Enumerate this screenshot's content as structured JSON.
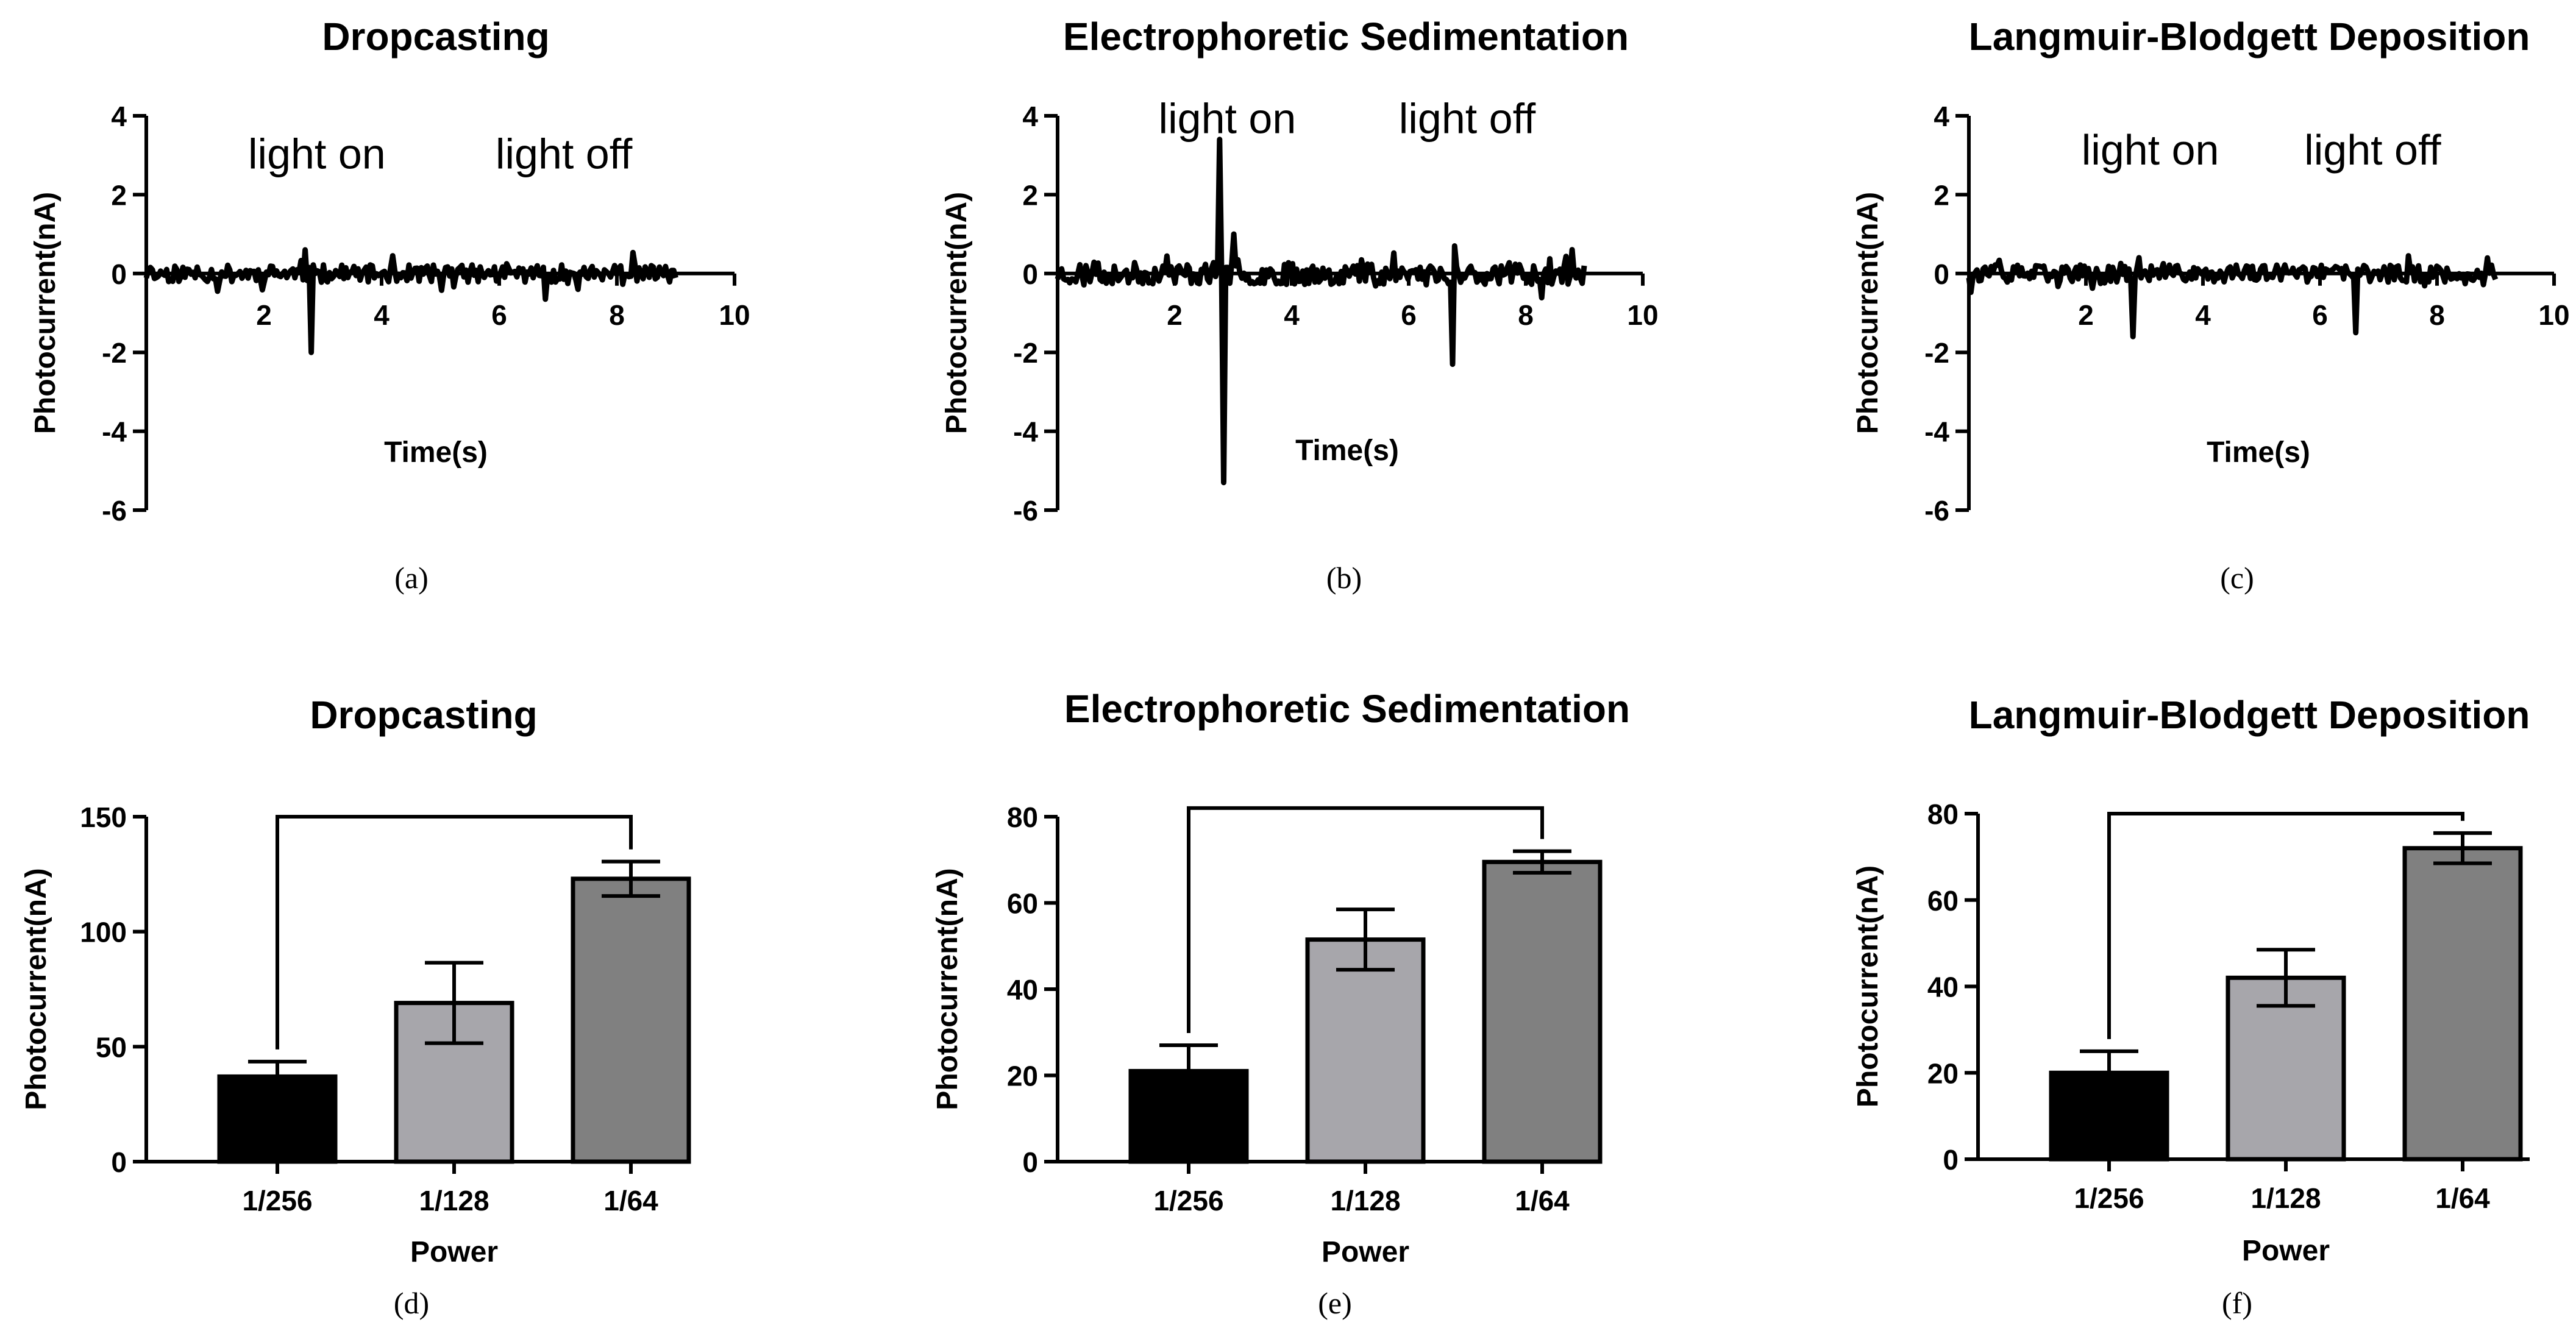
{
  "chart_data": [
    {
      "id": "a",
      "type": "line",
      "caption": "(a)",
      "title": "Dropcasting",
      "xlabel": "Time(s)",
      "ylabel": "Photocurrent(nA)",
      "xlim": [
        0,
        10
      ],
      "ylim": [
        -6,
        4
      ],
      "xticks": [
        2,
        4,
        6,
        8,
        10
      ],
      "yticks": [
        4,
        2,
        0,
        -2,
        -4,
        -6
      ],
      "annotations": [
        {
          "text": "light on",
          "x": 2.9,
          "y": 3.0
        },
        {
          "text": "light off",
          "x": 7.1,
          "y": 3.0
        }
      ],
      "series": [
        {
          "name": "photocurrent",
          "x_end": 9.0,
          "noise": 0.22,
          "seed": 11,
          "spikes": [
            {
              "x": 2.82,
              "y": -2.0
            },
            {
              "x": 2.7,
              "y": 0.6
            },
            {
              "x": 6.8,
              "y": -0.65
            },
            {
              "x": 1.2,
              "y": -0.45
            }
          ]
        }
      ]
    },
    {
      "id": "b",
      "type": "line",
      "caption": "(b)",
      "title": "Electrophoretic Sedimentation",
      "xlabel": "Time(s)",
      "ylabel": "Photocurrent(nA)",
      "xlim": [
        0,
        10
      ],
      "ylim": [
        -6,
        4
      ],
      "xticks": [
        2,
        4,
        6,
        8,
        10
      ],
      "yticks": [
        4,
        2,
        0,
        -2,
        -4,
        -6
      ],
      "annotations": [
        {
          "text": "light on",
          "x": 2.9,
          "y": 3.9
        },
        {
          "text": "light off",
          "x": 7.0,
          "y": 3.9
        }
      ],
      "series": [
        {
          "name": "photocurrent",
          "x_end": 9.0,
          "noise": 0.28,
          "seed": 23,
          "spikes": [
            {
              "x": 2.78,
              "y": 3.4
            },
            {
              "x": 2.85,
              "y": -5.3
            },
            {
              "x": 3.0,
              "y": 1.0
            },
            {
              "x": 6.75,
              "y": -2.3
            },
            {
              "x": 6.8,
              "y": 0.7
            }
          ]
        }
      ]
    },
    {
      "id": "c",
      "type": "line",
      "caption": "(c)",
      "title": "Langmuir-Blodgett Deposition",
      "xlabel": "Time(s)",
      "ylabel": "Photocurrent(nA)",
      "xlim": [
        0,
        10
      ],
      "ylim": [
        -6,
        4
      ],
      "xticks": [
        2,
        4,
        6,
        8,
        10
      ],
      "yticks": [
        4,
        2,
        0,
        -2,
        -4,
        -6
      ],
      "annotations": [
        {
          "text": "light on",
          "x": 3.1,
          "y": 3.1
        },
        {
          "text": "light off",
          "x": 6.9,
          "y": 3.1
        }
      ],
      "series": [
        {
          "name": "photocurrent",
          "x_end": 9.0,
          "noise": 0.22,
          "seed": 37,
          "spikes": [
            {
              "x": 2.8,
              "y": -1.6
            },
            {
              "x": 2.9,
              "y": 0.4
            },
            {
              "x": 6.62,
              "y": -1.5
            },
            {
              "x": 7.5,
              "y": 0.45
            }
          ]
        }
      ]
    },
    {
      "id": "d",
      "type": "bar",
      "caption": "(d)",
      "title": "Dropcasting",
      "xlabel": "Power",
      "ylabel": "Photocurrent(nA)",
      "categories": [
        "1/256",
        "1/128",
        "1/64"
      ],
      "values": [
        37,
        69,
        123
      ],
      "errors": [
        6.5,
        17.5,
        7.5
      ],
      "ylim": [
        0,
        150
      ],
      "yticks": [
        0,
        50,
        100,
        150
      ],
      "colors": [
        "#000000",
        "#a7a6ab",
        "#808080"
      ],
      "bracket": {
        "from": 0,
        "to": 2,
        "y": 150
      }
    },
    {
      "id": "e",
      "type": "bar",
      "caption": "(e)",
      "title": "Electrophoretic Sedimentation",
      "xlabel": "Power",
      "ylabel": "Photocurrent(nA)",
      "categories": [
        "1/256",
        "1/128",
        "1/64"
      ],
      "values": [
        21,
        51.5,
        69.5
      ],
      "errors": [
        6,
        7,
        2.5
      ],
      "ylim": [
        0,
        80
      ],
      "yticks": [
        0,
        20,
        40,
        60,
        80
      ],
      "colors": [
        "#000000",
        "#a7a6ab",
        "#808080"
      ],
      "bracket": {
        "from": 0,
        "to": 2,
        "y": 82
      }
    },
    {
      "id": "f",
      "type": "bar",
      "caption": "(f)",
      "title": "Langmuir-Blodgett Deposition",
      "xlabel": "Power",
      "ylabel": "Photocurrent(nA)",
      "categories": [
        "1/256",
        "1/128",
        "1/64"
      ],
      "values": [
        20,
        42,
        72
      ],
      "errors": [
        5,
        6.5,
        3.5
      ],
      "ylim": [
        0,
        80
      ],
      "yticks": [
        0,
        20,
        40,
        60,
        80
      ],
      "colors": [
        "#000000",
        "#a7a6ab",
        "#808080"
      ],
      "bracket": {
        "from": 0,
        "to": 2,
        "y": 80
      }
    }
  ]
}
